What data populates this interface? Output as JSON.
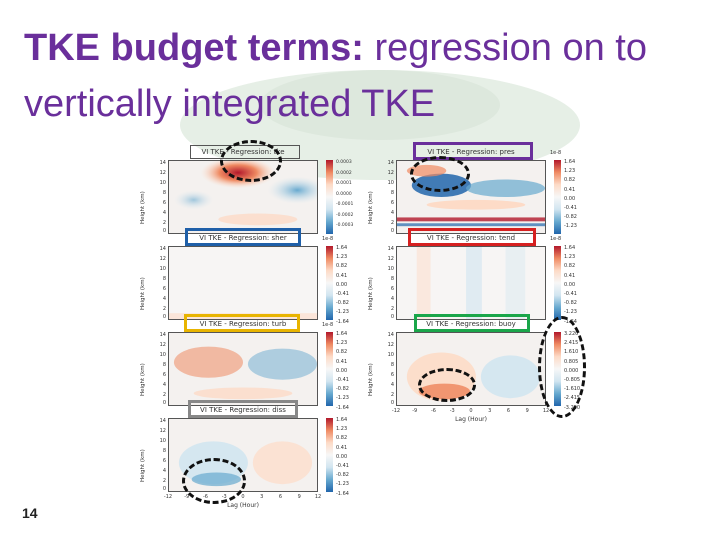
{
  "slide": {
    "title_bold": "TKE budget terms:",
    "title_rest": " regression on to vertically integrated TKE",
    "slide_number": "14"
  },
  "figure": {
    "y_axis_label": "Height (km)",
    "x_axis_label": "Lag (Hour)",
    "y_ticks": [
      "14",
      "12",
      "10",
      "8",
      "6",
      "4",
      "2",
      "0"
    ],
    "x_ticks": [
      "-12",
      "-9",
      "-6",
      "-3",
      "0",
      "3",
      "6",
      "9",
      "12"
    ],
    "colorbar_exponent": "1e-8",
    "colorbar_ticks_std": [
      "1.64",
      "1.23",
      "0.82",
      "0.41",
      "0.00",
      "-0.41",
      "-0.82",
      "-1.23",
      "-1.64"
    ],
    "colorbar_ticks_tke": [
      "0.0003",
      "0.0002",
      "0.0001",
      "0.0000",
      "-0.0001",
      "-0.0002",
      "-0.0003"
    ],
    "colorbar_ticks_buoy": [
      "3.220",
      "2.415",
      "1.610",
      "0.805",
      "0.000",
      "-0.805",
      "-1.610",
      "-2.415",
      "-3.220"
    ],
    "panels": [
      {
        "key": "tke",
        "title": "VI TKE - Regression: tke",
        "highlight": "#555555"
      },
      {
        "key": "pres",
        "title": "VI TKE - Regression: pres",
        "highlight": "#6a2f9b"
      },
      {
        "key": "sher",
        "title": "VI TKE - Regression: sher",
        "highlight": "#1f5fa8"
      },
      {
        "key": "tend",
        "title": "VI TKE - Regression: tend",
        "highlight": "#d62020"
      },
      {
        "key": "turb",
        "title": "VI TKE - Regression: turb",
        "highlight": "#e8b400"
      },
      {
        "key": "buoy",
        "title": "VI TKE - Regression: buoy",
        "highlight": "#1aa64a"
      },
      {
        "key": "diss",
        "title": "VI TKE - Regression: diss",
        "highlight": "#888888"
      }
    ]
  },
  "colors": {
    "title": "#6a2f9b",
    "red": "#b2182b",
    "blue": "#2166ac"
  }
}
